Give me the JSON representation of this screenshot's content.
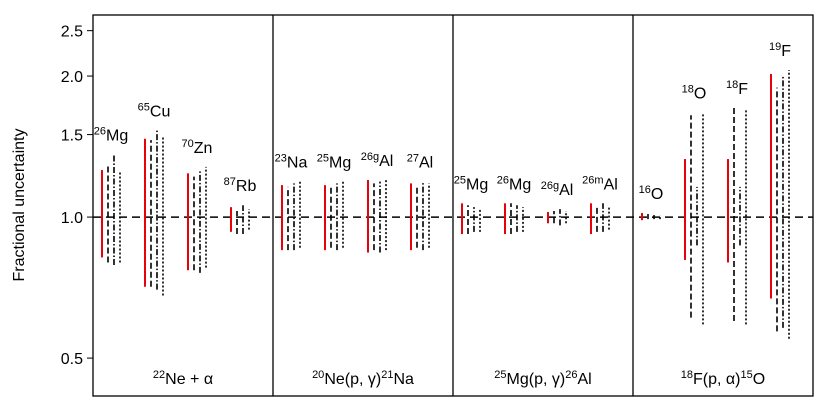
{
  "chart_data": {
    "type": "errorbar",
    "ylabel": "Fractional uncertainty",
    "log_y": true,
    "ylim": [
      0.415,
      2.7
    ],
    "yticks": [
      0.5,
      {
        "value": 1,
        "label": "1.0"
      },
      1.5,
      {
        "value": 2,
        "label": "2.0"
      },
      2.5
    ],
    "reference_line": 1,
    "bar_styles": [
      {
        "color": "#e8000b",
        "dash": "none"
      },
      {
        "color": "#000000",
        "dash": "6 3"
      },
      {
        "color": "#000000",
        "dash": "6 2 1.5 2"
      },
      {
        "color": "#000000",
        "dash": "2 2"
      }
    ],
    "panels": [
      {
        "label": [
          {
            "sup": "22"
          },
          {
            "text": "Ne + α"
          }
        ],
        "groups": [
          {
            "mass": "26",
            "element": "Mg",
            "bars": [
              [
                0.82,
                1.26
              ],
              [
                0.8,
                1.29
              ],
              [
                0.79,
                1.36
              ],
              [
                0.8,
                1.25
              ]
            ]
          },
          {
            "mass": "65",
            "element": "Cu",
            "bars": [
              [
                0.71,
                1.47
              ],
              [
                0.71,
                1.46
              ],
              [
                0.7,
                1.53
              ],
              [
                0.68,
                1.49
              ]
            ]
          },
          {
            "mass": "70",
            "element": "Zn",
            "bars": [
              [
                0.77,
                1.24
              ],
              [
                0.77,
                1.22
              ],
              [
                0.76,
                1.26
              ],
              [
                0.78,
                1.28
              ]
            ]
          },
          {
            "mass": "87",
            "element": "Rb",
            "bars": [
              [
                0.93,
                1.05
              ],
              [
                0.92,
                1.03
              ],
              [
                0.92,
                1.06
              ],
              [
                0.94,
                1.04
              ]
            ]
          }
        ]
      },
      {
        "label": [
          {
            "sup": "20"
          },
          {
            "text": "Ne(p, γ)"
          },
          {
            "sup": "21"
          },
          {
            "text": "Na"
          }
        ],
        "groups": [
          {
            "mass": "23",
            "element": "Na",
            "bars": [
              [
                0.85,
                1.17
              ],
              [
                0.85,
                1.16
              ],
              [
                0.85,
                1.18
              ],
              [
                0.86,
                1.19
              ]
            ]
          },
          {
            "mass": "25",
            "element": "Mg",
            "bars": [
              [
                0.85,
                1.17
              ],
              [
                0.86,
                1.16
              ],
              [
                0.85,
                1.18
              ],
              [
                0.86,
                1.19
              ]
            ]
          },
          {
            "mass": "26g",
            "element": "Al",
            "bars": [
              [
                0.84,
                1.2
              ],
              [
                0.85,
                1.18
              ],
              [
                0.84,
                1.19
              ],
              [
                0.85,
                1.2
              ]
            ]
          },
          {
            "mass": "27",
            "element": "Al",
            "bars": [
              [
                0.85,
                1.18
              ],
              [
                0.86,
                1.17
              ],
              [
                0.85,
                1.19
              ],
              [
                0.86,
                1.18
              ]
            ]
          }
        ]
      },
      {
        "label": [
          {
            "sup": "25"
          },
          {
            "text": "Mg(p, γ)"
          },
          {
            "sup": "26"
          },
          {
            "text": "Al"
          }
        ],
        "groups": [
          {
            "mass": "25",
            "element": "Mg",
            "bars": [
              [
                0.92,
                1.07
              ],
              [
                0.92,
                1.06
              ],
              [
                0.93,
                1.05
              ],
              [
                0.93,
                1.04
              ]
            ]
          },
          {
            "mass": "26",
            "element": "Mg",
            "bars": [
              [
                0.92,
                1.07
              ],
              [
                0.92,
                1.07
              ],
              [
                0.93,
                1.06
              ],
              [
                0.93,
                1.05
              ]
            ]
          },
          {
            "mass": "26g",
            "element": "Al",
            "bars": [
              [
                0.97,
                1.025
              ],
              [
                0.97,
                1.03
              ],
              [
                0.96,
                1.04
              ],
              [
                0.97,
                1.03
              ]
            ]
          },
          {
            "mass": "26m",
            "element": "Al",
            "bars": [
              [
                0.92,
                1.07
              ],
              [
                0.93,
                1.06
              ],
              [
                0.93,
                1.07
              ],
              [
                0.94,
                1.05
              ]
            ]
          }
        ]
      },
      {
        "label": [
          {
            "sup": "18"
          },
          {
            "text": "F(p, α)"
          },
          {
            "sup": "15"
          },
          {
            "text": "O"
          }
        ],
        "groups": [
          {
            "mass": "16",
            "element": "O",
            "bars": [
              [
                0.985,
                1.02
              ],
              [
                0.99,
                1.015
              ],
              [
                0.99,
                1.01
              ],
              [
                0.99,
                1.01
              ]
            ]
          },
          {
            "mass": "18",
            "element": "O",
            "bars": [
              [
                0.81,
                1.33
              ],
              [
                0.61,
                1.65
              ],
              [
                0.87,
                1.16
              ],
              [
                0.59,
                1.67
              ]
            ]
          },
          {
            "mass": "18",
            "element": "F",
            "bars": [
              [
                0.8,
                1.33
              ],
              [
                0.6,
                1.71
              ],
              [
                0.87,
                1.16
              ],
              [
                0.59,
                1.7
              ]
            ]
          },
          {
            "mass": "19",
            "element": "F",
            "bars": [
              [
                0.67,
                2.02
              ],
              [
                0.57,
                1.89
              ],
              [
                0.58,
                2.0
              ],
              [
                0.55,
                2.06
              ]
            ]
          }
        ]
      }
    ]
  }
}
